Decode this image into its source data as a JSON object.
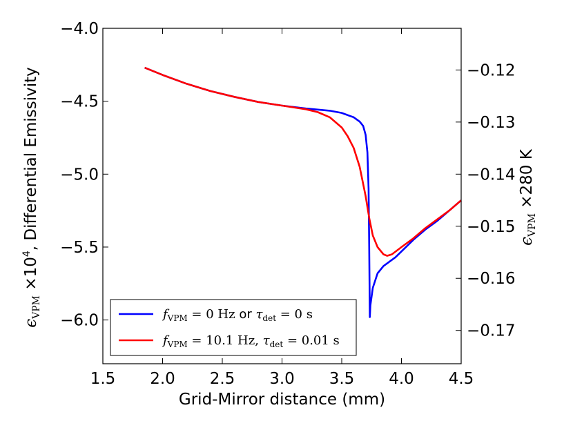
{
  "chart_data": {
    "type": "line",
    "xlabel": "Grid-Mirror distance (mm)",
    "ylabel_left": "ε_VPM ×10⁴, Differential Emissivity",
    "ylabel_right": "ε_VPM ×280 K",
    "xlim": [
      1.5,
      4.5
    ],
    "ylim": [
      -6.3,
      -4.0
    ],
    "ylim_right": [
      -0.1764,
      -0.112
    ],
    "x_ticks": [
      "1.5",
      "2.0",
      "2.5",
      "3.0",
      "3.5",
      "4.0",
      "4.5"
    ],
    "x_tick_values": [
      1.5,
      2.0,
      2.5,
      3.0,
      3.5,
      4.0,
      4.5
    ],
    "y_ticks_left": [
      "−4.0",
      "−4.5",
      "−5.0",
      "−5.5",
      "−6.0"
    ],
    "y_tick_values_left": [
      -4.0,
      -4.5,
      -5.0,
      -5.5,
      -6.0
    ],
    "y_ticks_right": [
      "−0.12",
      "−0.13",
      "−0.14",
      "−0.15",
      "−0.16",
      "−0.17"
    ],
    "y_tick_values_right": [
      -0.12,
      -0.13,
      -0.14,
      -0.15,
      -0.16,
      -0.17
    ],
    "legend_position": "lower-left",
    "series": [
      {
        "name": "f_VPM = 0 Hz or τ_det = 0 s",
        "legend_label": "fVPM = 0 Hz or τdet = 0 s",
        "color": "#0000ff",
        "points": [
          [
            1.85,
            -4.27
          ],
          [
            2.0,
            -4.32
          ],
          [
            2.2,
            -4.38
          ],
          [
            2.4,
            -4.43
          ],
          [
            2.6,
            -4.47
          ],
          [
            2.8,
            -4.505
          ],
          [
            3.0,
            -4.53
          ],
          [
            3.2,
            -4.55
          ],
          [
            3.4,
            -4.565
          ],
          [
            3.5,
            -4.58
          ],
          [
            3.6,
            -4.61
          ],
          [
            3.65,
            -4.64
          ],
          [
            3.68,
            -4.67
          ],
          [
            3.7,
            -4.73
          ],
          [
            3.715,
            -4.85
          ],
          [
            3.725,
            -5.1
          ],
          [
            3.73,
            -5.5
          ],
          [
            3.735,
            -5.98
          ],
          [
            3.74,
            -5.9
          ],
          [
            3.76,
            -5.78
          ],
          [
            3.8,
            -5.68
          ],
          [
            3.85,
            -5.63
          ],
          [
            3.9,
            -5.6
          ],
          [
            3.95,
            -5.57
          ],
          [
            4.0,
            -5.53
          ],
          [
            4.1,
            -5.45
          ],
          [
            4.2,
            -5.38
          ],
          [
            4.3,
            -5.32
          ],
          [
            4.4,
            -5.25
          ],
          [
            4.5,
            -5.18
          ]
        ]
      },
      {
        "name": "f_VPM = 10.1 Hz, τ_det = 0.01 s",
        "legend_label": "fVPM = 10.1 Hz, τdet = 0.01 s",
        "color": "#ff0000",
        "points": [
          [
            1.85,
            -4.27
          ],
          [
            2.0,
            -4.32
          ],
          [
            2.2,
            -4.38
          ],
          [
            2.4,
            -4.43
          ],
          [
            2.6,
            -4.47
          ],
          [
            2.8,
            -4.505
          ],
          [
            3.0,
            -4.53
          ],
          [
            3.2,
            -4.555
          ],
          [
            3.3,
            -4.575
          ],
          [
            3.4,
            -4.61
          ],
          [
            3.5,
            -4.68
          ],
          [
            3.55,
            -4.74
          ],
          [
            3.6,
            -4.82
          ],
          [
            3.65,
            -4.95
          ],
          [
            3.7,
            -5.15
          ],
          [
            3.73,
            -5.3
          ],
          [
            3.76,
            -5.42
          ],
          [
            3.8,
            -5.5
          ],
          [
            3.85,
            -5.55
          ],
          [
            3.88,
            -5.56
          ],
          [
            3.92,
            -5.55
          ],
          [
            4.0,
            -5.5
          ],
          [
            4.1,
            -5.44
          ],
          [
            4.2,
            -5.37
          ],
          [
            4.3,
            -5.31
          ],
          [
            4.4,
            -5.25
          ],
          [
            4.5,
            -5.18
          ]
        ]
      }
    ]
  }
}
